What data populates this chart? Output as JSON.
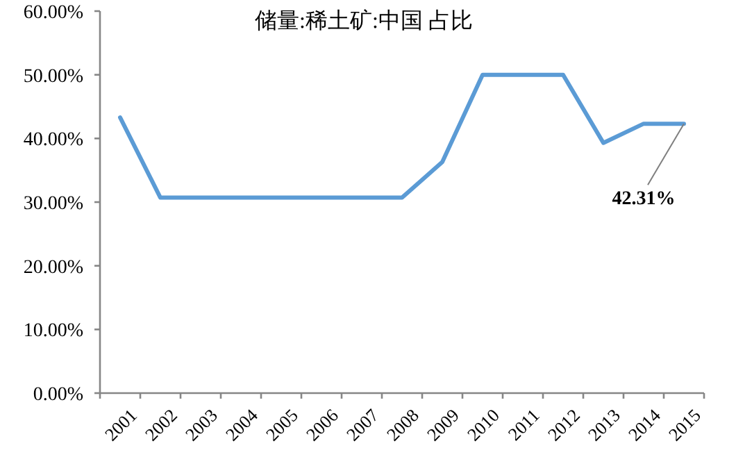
{
  "chart_data": {
    "type": "line",
    "title": "储量:稀土矿:中国 占比",
    "categories": [
      "2001",
      "2002",
      "2003",
      "2004",
      "2005",
      "2006",
      "2007",
      "2008",
      "2009",
      "2010",
      "2011",
      "2012",
      "2013",
      "2014",
      "2015"
    ],
    "series": [
      {
        "color": "#5b9bd5",
        "values": [
          43.3,
          30.7,
          30.7,
          30.7,
          30.7,
          30.7,
          30.7,
          30.7,
          36.3,
          50,
          50,
          50,
          39.3,
          42.31,
          42.31
        ]
      }
    ],
    "ylim": [
      0,
      60
    ],
    "yticks": [
      {
        "value": 0,
        "label": "0.00%"
      },
      {
        "value": 10,
        "label": "10.00%"
      },
      {
        "value": 20,
        "label": "20.00%"
      },
      {
        "value": 30,
        "label": "30.00%"
      },
      {
        "value": 40,
        "label": "40.00%"
      },
      {
        "value": 50,
        "label": "50.00%"
      },
      {
        "value": 60,
        "label": "60.00%"
      }
    ],
    "annotations": [
      {
        "text": "42.31%",
        "x": "2015",
        "y": 42.31
      }
    ],
    "grid": false,
    "marker": "none",
    "line_style": "solid"
  }
}
